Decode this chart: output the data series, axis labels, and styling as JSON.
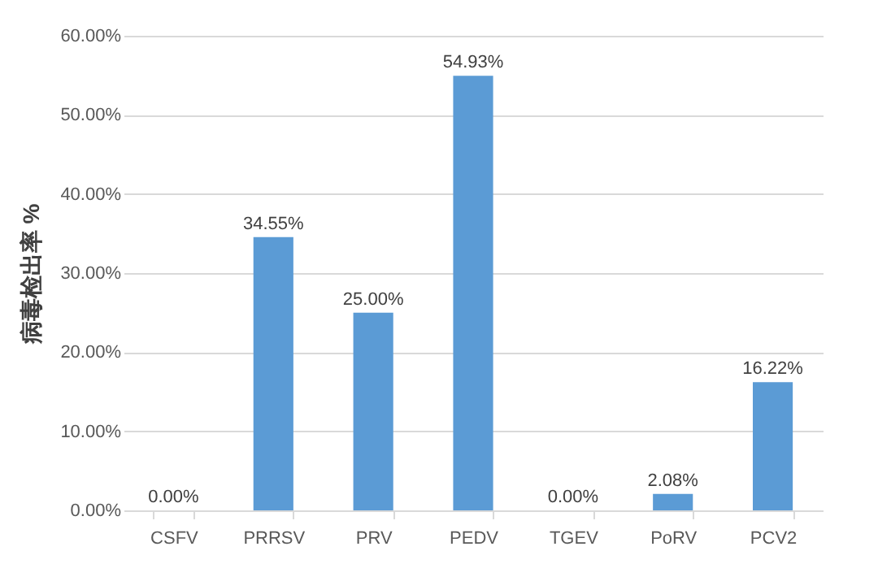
{
  "chart_data": {
    "type": "bar",
    "ylabel": "病毒检出率 %",
    "categories": [
      "CSFV",
      "PRRSV",
      "PRV",
      "PEDV",
      "TGEV",
      "PoRV",
      "PCV2"
    ],
    "values": [
      0,
      34.55,
      25.0,
      54.93,
      0,
      2.08,
      16.22
    ],
    "value_labels": [
      "0.00%",
      "34.55%",
      "25.00%",
      "54.93%",
      "0.00%",
      "2.08%",
      "16.22%"
    ],
    "color": "#5b9bd5",
    "ylim": [
      0,
      60
    ],
    "yticks": [
      {
        "value": 0,
        "label": "0.00%"
      },
      {
        "value": 10,
        "label": "10.00%"
      },
      {
        "value": 20,
        "label": "20.00%"
      },
      {
        "value": 30,
        "label": "30.00%"
      },
      {
        "value": 40,
        "label": "40.00%"
      },
      {
        "value": 50,
        "label": "50.00%"
      },
      {
        "value": 60,
        "label": "60.00%"
      }
    ],
    "grid": "y"
  }
}
